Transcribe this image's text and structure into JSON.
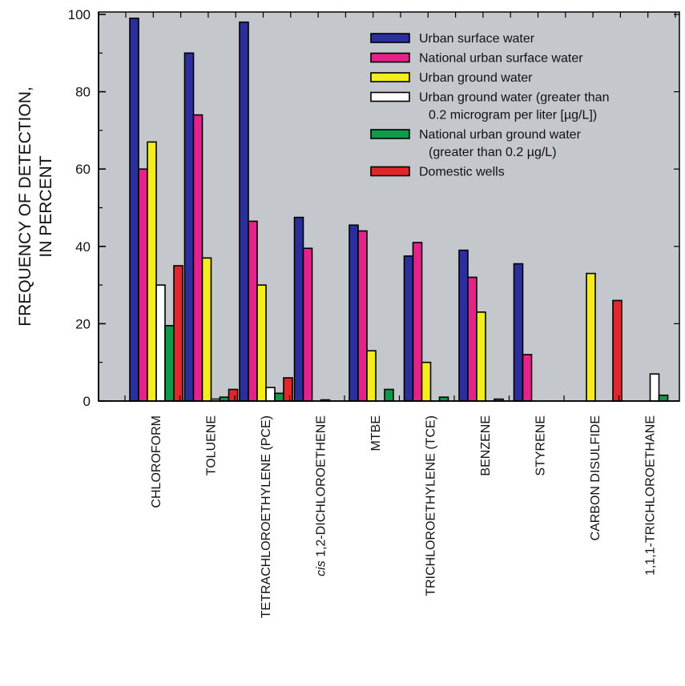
{
  "chart_data": {
    "type": "bar",
    "title": "",
    "xlabel": "",
    "ylabel": [
      "FREQUENCY OF DETECTION,",
      "IN PERCENT"
    ],
    "ylim": [
      0,
      100
    ],
    "yticks": [
      0,
      20,
      40,
      60,
      80,
      100
    ],
    "grid": false,
    "background": "#c4c7cc",
    "legend_position": "top-right",
    "categories": [
      {
        "prefix": "",
        "text": "CHLOROFORM"
      },
      {
        "prefix": "",
        "text": "TOLUENE"
      },
      {
        "prefix": "",
        "text": "TETRACHLOROETHYLENE (PCE)"
      },
      {
        "prefix": "cis",
        "text": " 1,2-DICHLOROETHENE"
      },
      {
        "prefix": "",
        "text": "MTBE"
      },
      {
        "prefix": "",
        "text": "TRICHLOROETHYLENE (TCE)"
      },
      {
        "prefix": "",
        "text": "BENZENE"
      },
      {
        "prefix": "",
        "text": "STYRENE"
      },
      {
        "prefix": "",
        "text": "CARBON DISULFIDE"
      },
      {
        "prefix": "",
        "text": "1,1,1-TRICHLOROETHANE"
      }
    ],
    "series": [
      {
        "name": "Urban surface water",
        "color": "#2b2f9c",
        "values": [
          99,
          90,
          98,
          47.5,
          45.5,
          37.5,
          39,
          35.5,
          null,
          null
        ]
      },
      {
        "name": "National urban surface water",
        "color": "#e6228a",
        "values": [
          60,
          74,
          46.5,
          39.5,
          44,
          41,
          32,
          12,
          null,
          null
        ]
      },
      {
        "name": "Urban ground water",
        "color": "#f4ec1c",
        "values": [
          67,
          37,
          30,
          null,
          13,
          10,
          23,
          null,
          33,
          null
        ]
      },
      {
        "name": [
          "Urban ground water (greater than",
          "0.2 microgram per liter [µg/L])"
        ],
        "color": "#ffffff",
        "values": [
          30,
          0.5,
          3.5,
          0.3,
          null,
          null,
          null,
          null,
          null,
          7
        ]
      },
      {
        "name": [
          "National urban ground water",
          "(greater than 0.2 µg/L)"
        ],
        "color": "#0f9a4b",
        "values": [
          19.5,
          1,
          2,
          null,
          3,
          1,
          0.5,
          null,
          null,
          1.5
        ]
      },
      {
        "name": "Domestic wells",
        "color": "#e3262b",
        "values": [
          35,
          3,
          6,
          null,
          null,
          null,
          null,
          null,
          26,
          null
        ]
      }
    ]
  }
}
